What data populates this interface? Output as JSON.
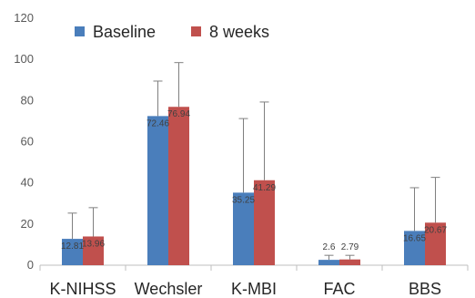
{
  "chart_data": {
    "type": "bar",
    "categories": [
      "K-NIHSS",
      "Wechsler",
      "K-MBI",
      "FAC",
      "BBS"
    ],
    "series": [
      {
        "name": "Baseline",
        "color": "#4a7ebb",
        "values": [
          12.81,
          72.46,
          35.25,
          2.6,
          16.65
        ],
        "error": [
          12.5,
          17.0,
          36.0,
          2.2,
          21.0
        ],
        "labels": [
          "12.81",
          "72.46",
          "35.25",
          "2.6",
          "16.65"
        ]
      },
      {
        "name": "8 weeks",
        "color": "#c0504d",
        "values": [
          13.96,
          76.94,
          41.29,
          2.79,
          20.67
        ],
        "error": [
          14.0,
          21.5,
          38.0,
          2.0,
          22.0
        ],
        "labels": [
          "13.96",
          "76.94",
          "41.29",
          "2.79",
          "20.67"
        ]
      }
    ],
    "ylim": [
      0,
      120
    ],
    "yticks": [
      0,
      20,
      40,
      60,
      80,
      100,
      120
    ],
    "grid": false,
    "legend": "top-left"
  }
}
